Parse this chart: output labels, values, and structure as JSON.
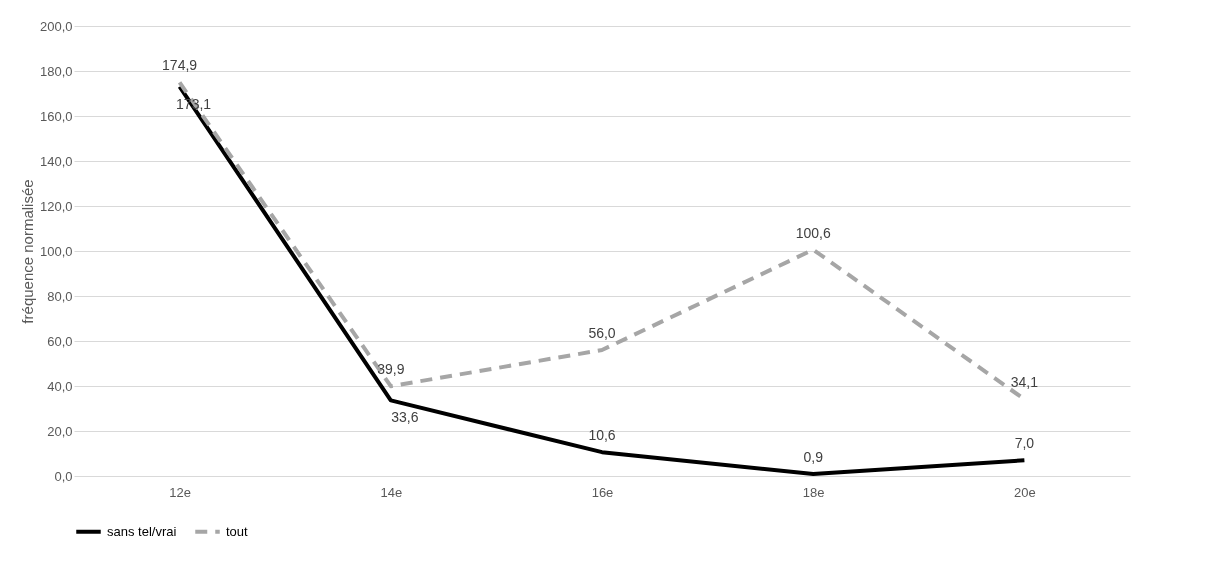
{
  "chart_data": {
    "type": "line",
    "ylabel": "fréquence normalisée",
    "categories": [
      "12e",
      "14e",
      "16e",
      "18e",
      "20e"
    ],
    "series": [
      {
        "name": "sans tel/vrai",
        "color": "#000000",
        "line_style": "solid",
        "values": [
          173.1,
          33.6,
          10.6,
          0.9,
          7.0
        ],
        "value_labels": [
          "173,1",
          "33,6",
          "10,6",
          "0,9",
          "7,0"
        ]
      },
      {
        "name": "tout",
        "color": "#a6a6a6",
        "line_style": "dashed",
        "values": [
          174.9,
          39.9,
          56.0,
          100.6,
          34.1
        ],
        "value_labels": [
          "174,9",
          "39,9",
          "56,0",
          "100,6",
          "34,1"
        ]
      }
    ],
    "ylim": [
      0,
      200
    ],
    "yticks": [
      {
        "value": 0,
        "label": "0,0"
      },
      {
        "value": 20,
        "label": "20,0"
      },
      {
        "value": 40,
        "label": "40,0"
      },
      {
        "value": 60,
        "label": "60,0"
      },
      {
        "value": 80,
        "label": "80,0"
      },
      {
        "value": 100,
        "label": "100,0"
      },
      {
        "value": 120,
        "label": "120,0"
      },
      {
        "value": 140,
        "label": "140,0"
      },
      {
        "value": 160,
        "label": "160,0"
      },
      {
        "value": 180,
        "label": "180,0"
      },
      {
        "value": 200,
        "label": "200,0"
      }
    ],
    "grid": "y",
    "legend": "bottom",
    "marker": "none"
  }
}
